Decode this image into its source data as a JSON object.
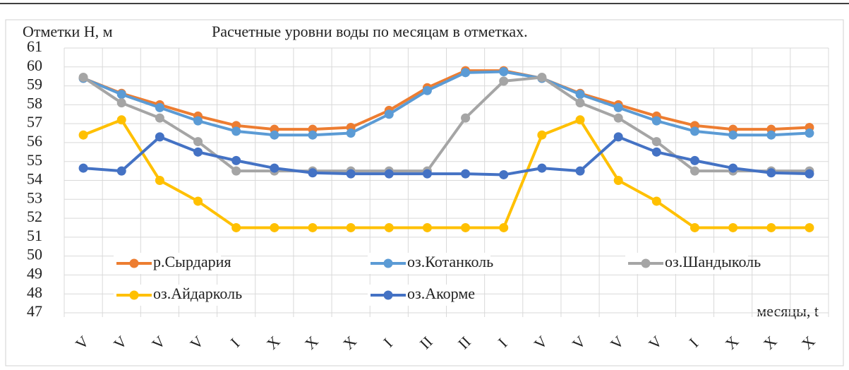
{
  "chart_data": {
    "type": "line",
    "title": "Расчетные уровни воды по месяцам в отметках.",
    "y_label": "Отметки H, м",
    "x_label": "месяцы, t",
    "categories": [
      "V",
      "V",
      "V",
      "V",
      "I",
      "X",
      "X",
      "X",
      "I",
      "II",
      "II",
      "I",
      "V",
      "V",
      "V",
      "V",
      "I",
      "X",
      "X",
      "X"
    ],
    "series": [
      {
        "name": "р.Сырдария",
        "color": "#ed7d31",
        "values": [
          59.4,
          58.6,
          58.0,
          57.4,
          56.9,
          56.7,
          56.7,
          56.8,
          57.7,
          58.9,
          59.8,
          59.8,
          59.4,
          58.6,
          58.0,
          57.4,
          56.9,
          56.7,
          56.7,
          56.8
        ]
      },
      {
        "name": "оз.Котанколь",
        "color": "#5b9bd5",
        "values": [
          59.4,
          58.55,
          57.85,
          57.15,
          56.6,
          56.4,
          56.4,
          56.5,
          57.5,
          58.75,
          59.7,
          59.75,
          59.4,
          58.55,
          57.85,
          57.15,
          56.6,
          56.4,
          56.4,
          56.5
        ]
      },
      {
        "name": "оз.Шандыколь",
        "color": "#a5a5a5",
        "values": [
          59.45,
          58.1,
          57.3,
          56.05,
          54.5,
          54.5,
          54.5,
          54.5,
          54.5,
          54.5,
          57.3,
          59.25,
          59.45,
          58.1,
          57.3,
          56.05,
          54.5,
          54.5,
          54.5,
          54.5
        ]
      },
      {
        "name": "оз.Айдарколь",
        "color": "#ffc000",
        "values": [
          56.4,
          57.2,
          54.0,
          52.9,
          51.5,
          51.5,
          51.5,
          51.5,
          51.5,
          51.5,
          51.5,
          51.5,
          56.4,
          57.2,
          54.0,
          52.9,
          51.5,
          51.5,
          51.5,
          51.5
        ]
      },
      {
        "name": "оз.Акорме",
        "color": "#4472c4",
        "values": [
          54.65,
          54.5,
          56.3,
          55.5,
          55.05,
          54.65,
          54.4,
          54.35,
          54.35,
          54.35,
          54.35,
          54.3,
          54.65,
          54.5,
          56.3,
          55.5,
          55.05,
          54.65,
          54.4,
          54.35
        ]
      }
    ],
    "ylim": [
      47,
      61
    ],
    "yticks": [
      47,
      48,
      49,
      50,
      51,
      52,
      53,
      54,
      55,
      56,
      57,
      58,
      59,
      60,
      61
    ],
    "grid": true
  }
}
